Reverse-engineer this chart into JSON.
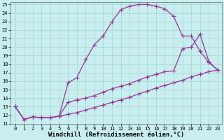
{
  "xlabel": "Windchill (Refroidissement éolien,°C)",
  "bg_color": "#c8eef0",
  "grid_color": "#a0d8c8",
  "line_color": "#993399",
  "xlim": [
    -0.5,
    23.5
  ],
  "ylim": [
    11,
    25.3
  ],
  "xticks": [
    0,
    1,
    2,
    3,
    4,
    5,
    6,
    7,
    8,
    9,
    10,
    11,
    12,
    13,
    14,
    15,
    16,
    17,
    18,
    19,
    20,
    21,
    22,
    23
  ],
  "yticks": [
    11,
    12,
    13,
    14,
    15,
    16,
    17,
    18,
    19,
    20,
    21,
    22,
    23,
    24,
    25
  ],
  "line1_x": [
    0,
    1,
    2,
    3,
    4,
    5,
    6,
    7,
    8,
    9,
    10,
    11,
    12,
    13,
    14,
    15,
    16,
    17,
    18,
    19,
    20,
    21,
    22,
    23
  ],
  "line1_y": [
    13.0,
    11.5,
    11.8,
    11.7,
    11.7,
    11.9,
    15.8,
    16.4,
    18.5,
    20.3,
    21.3,
    23.0,
    24.4,
    24.8,
    25.0,
    25.0,
    24.8,
    24.5,
    23.6,
    21.3,
    21.3,
    19.5,
    18.2,
    17.3
  ],
  "line2_x": [
    0,
    1,
    2,
    3,
    4,
    5,
    6,
    7,
    8,
    9,
    10,
    11,
    12,
    13,
    14,
    15,
    16,
    17,
    18,
    19,
    20,
    21,
    22,
    23
  ],
  "line2_y": [
    13.0,
    11.5,
    11.8,
    11.7,
    11.7,
    11.9,
    13.5,
    13.8,
    14.0,
    14.3,
    14.7,
    15.1,
    15.4,
    15.7,
    16.1,
    16.5,
    16.8,
    17.1,
    17.2,
    19.8,
    20.0,
    21.5,
    18.3,
    17.3
  ],
  "line3_x": [
    0,
    1,
    2,
    3,
    4,
    5,
    6,
    7,
    8,
    9,
    10,
    11,
    12,
    13,
    14,
    15,
    16,
    17,
    18,
    19,
    20,
    21,
    22,
    23
  ],
  "line3_y": [
    13.0,
    11.5,
    11.8,
    11.7,
    11.7,
    11.9,
    12.1,
    12.3,
    12.6,
    12.9,
    13.2,
    13.5,
    13.8,
    14.1,
    14.5,
    14.8,
    15.2,
    15.5,
    15.8,
    16.1,
    16.5,
    16.8,
    17.1,
    17.3
  ],
  "markersize": 2.5,
  "linewidth": 0.9,
  "tick_fontsize": 5.0,
  "xlabel_fontsize": 6.2
}
